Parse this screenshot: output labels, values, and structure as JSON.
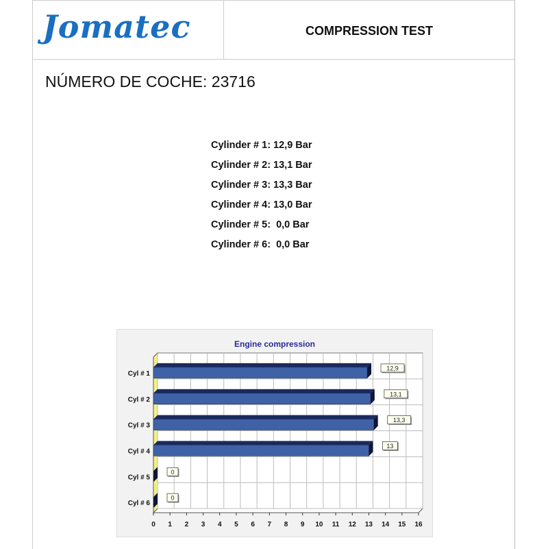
{
  "header": {
    "logo": "Jomatec",
    "title": "COMPRESSION TEST"
  },
  "car_number": "NÚMERO DE COCHE: 23716",
  "readings": [
    "Cylinder # 1: 12,9 Bar",
    "Cylinder # 2: 13,1 Bar",
    "Cylinder # 3: 13,3 Bar",
    "Cylinder # 4: 13,0 Bar",
    "Cylinder # 5:  0,0 Bar",
    "Cylinder # 6:  0,0 Bar"
  ],
  "chart_data": {
    "type": "bar",
    "orientation": "horizontal",
    "title": "Engine compression",
    "categories": [
      "Cyl # 1",
      "Cyl # 2",
      "Cyl # 3",
      "Cyl # 4",
      "Cyl # 5",
      "Cyl # 6"
    ],
    "values": [
      12.9,
      13.1,
      13.3,
      13,
      0,
      0
    ],
    "data_labels": [
      "12,9",
      "13,1",
      "13,3",
      "13",
      "0",
      "0"
    ],
    "xlim": [
      0,
      16
    ],
    "xticks": [
      "0",
      "1",
      "2",
      "3",
      "4",
      "5",
      "6",
      "7",
      "8",
      "9",
      "10",
      "11",
      "12",
      "13",
      "14",
      "15",
      "16"
    ],
    "grid": true,
    "colors": {
      "bar": "#3f62a6",
      "bar_top": "#1b2a5e",
      "title": "#2a2a9a",
      "axis_wall": "#f3f08a"
    }
  }
}
